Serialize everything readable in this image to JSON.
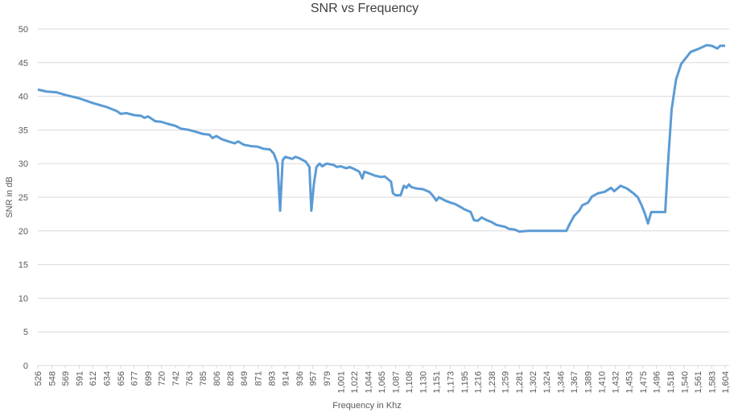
{
  "chart_data": {
    "type": "line",
    "title": "SNR vs Frequency",
    "x_label": "Frequency in Khz",
    "y_label": "SNR in dB",
    "grid": true,
    "legend": false,
    "xlim": [
      526,
      1604
    ],
    "xticks": [
      526,
      548,
      569,
      591,
      612,
      634,
      656,
      677,
      699,
      720,
      742,
      763,
      785,
      806,
      828,
      849,
      871,
      893,
      914,
      936,
      957,
      979,
      {
        "value": 1001,
        "label": "1,001"
      },
      {
        "value": 1022,
        "label": "1,022"
      },
      {
        "value": 1044,
        "label": "1,044"
      },
      {
        "value": 1065,
        "label": "1,065"
      },
      {
        "value": 1087,
        "label": "1,087"
      },
      {
        "value": 1108,
        "label": "1,108"
      },
      {
        "value": 1130,
        "label": "1,130"
      },
      {
        "value": 1151,
        "label": "1,151"
      },
      {
        "value": 1173,
        "label": "1,173"
      },
      {
        "value": 1195,
        "label": "1,195"
      },
      {
        "value": 1216,
        "label": "1,216"
      },
      {
        "value": 1238,
        "label": "1,238"
      },
      {
        "value": 1259,
        "label": "1,259"
      },
      {
        "value": 1281,
        "label": "1,281"
      },
      {
        "value": 1302,
        "label": "1,302"
      },
      {
        "value": 1324,
        "label": "1,324"
      },
      {
        "value": 1346,
        "label": "1,346"
      },
      {
        "value": 1367,
        "label": "1,367"
      },
      {
        "value": 1389,
        "label": "1,389"
      },
      {
        "value": 1410,
        "label": "1,410"
      },
      {
        "value": 1432,
        "label": "1,432"
      },
      {
        "value": 1453,
        "label": "1,453"
      },
      {
        "value": 1475,
        "label": "1,475"
      },
      {
        "value": 1496,
        "label": "1,496"
      },
      {
        "value": 1518,
        "label": "1,518"
      },
      {
        "value": 1540,
        "label": "1,540"
      },
      {
        "value": 1561,
        "label": "1,561"
      },
      {
        "value": 1583,
        "label": "1,583"
      },
      {
        "value": 1604,
        "label": "1,604"
      }
    ],
    "ylim": [
      0,
      50
    ],
    "yticks": [
      0,
      5,
      10,
      15,
      20,
      25,
      30,
      35,
      40,
      45,
      50
    ],
    "x": [
      526,
      540,
      555,
      569,
      591,
      612,
      634,
      650,
      656,
      665,
      677,
      688,
      693,
      699,
      710,
      720,
      730,
      742,
      750,
      763,
      775,
      785,
      795,
      800,
      806,
      815,
      828,
      835,
      840,
      849,
      860,
      871,
      880,
      890,
      896,
      902,
      906,
      910,
      914,
      925,
      930,
      936,
      946,
      952,
      955,
      959,
      963,
      968,
      972,
      979,
      990,
      995,
      1001,
      1010,
      1015,
      1022,
      1030,
      1035,
      1038,
      1044,
      1055,
      1065,
      1070,
      1080,
      1083,
      1087,
      1095,
      1100,
      1104,
      1108,
      1112,
      1120,
      1130,
      1140,
      1145,
      1151,
      1155,
      1165,
      1173,
      1180,
      1190,
      1195,
      1205,
      1210,
      1216,
      1222,
      1230,
      1238,
      1245,
      1259,
      1265,
      1274,
      1281,
      1295,
      1302,
      1346,
      1355,
      1360,
      1367,
      1375,
      1380,
      1389,
      1395,
      1405,
      1415,
      1425,
      1430,
      1440,
      1450,
      1460,
      1467,
      1473,
      1478,
      1483,
      1488,
      1496,
      1510,
      1514,
      1520,
      1527,
      1535,
      1545,
      1550,
      1561,
      1575,
      1583,
      1592,
      1596,
      1604
    ],
    "series": [
      {
        "name": "SNR",
        "color": "#5b9bd5",
        "values": [
          41,
          40.7,
          40.6,
          40.2,
          39.7,
          39,
          38.4,
          37.8,
          37.4,
          37.5,
          37.2,
          37.1,
          36.8,
          37,
          36.3,
          36.2,
          35.9,
          35.6,
          35.2,
          35,
          34.7,
          34.4,
          34.3,
          33.8,
          34.1,
          33.6,
          33.2,
          33,
          33.3,
          32.8,
          32.6,
          32.5,
          32.2,
          32.1,
          31.5,
          30,
          23,
          30.5,
          31,
          30.7,
          31,
          30.8,
          30.3,
          29.5,
          23,
          27,
          29.5,
          30,
          29.6,
          30,
          29.8,
          29.5,
          29.6,
          29.3,
          29.5,
          29.2,
          28.8,
          27.8,
          28.8,
          28.6,
          28.2,
          28,
          28.1,
          27.3,
          25.6,
          25.3,
          25.3,
          26.7,
          26.4,
          26.9,
          26.5,
          26.3,
          26.2,
          25.8,
          25.3,
          24.5,
          25,
          24.5,
          24.2,
          24,
          23.5,
          23.2,
          22.8,
          21.6,
          21.5,
          22,
          21.6,
          21.3,
          20.9,
          20.6,
          20.3,
          20.2,
          19.9,
          20,
          20,
          20,
          20,
          21,
          22.2,
          23,
          23.8,
          24.2,
          25.1,
          25.6,
          25.8,
          26.4,
          25.9,
          26.7,
          26.3,
          25.6,
          25,
          23.8,
          22.6,
          21.1,
          22.8,
          22.8,
          22.8,
          29.5,
          38,
          42.5,
          44.8,
          46,
          46.6,
          47,
          47.6,
          47.5,
          47.1,
          47.5,
          47.5
        ]
      }
    ]
  }
}
